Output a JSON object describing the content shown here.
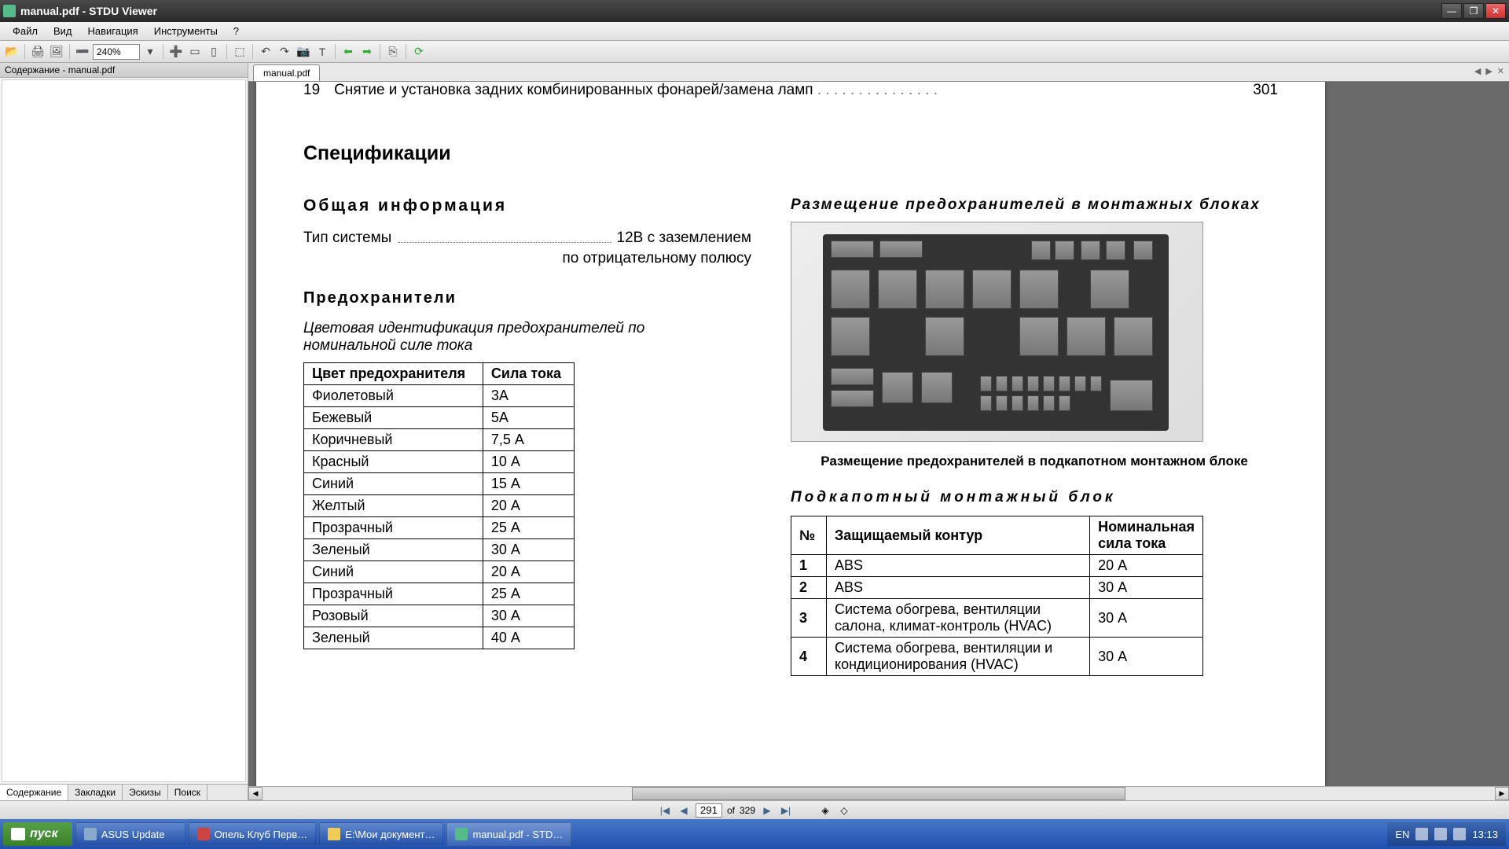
{
  "window": {
    "title": "manual.pdf - STDU Viewer"
  },
  "menu": {
    "file": "Файл",
    "view": "Вид",
    "nav": "Навигация",
    "tools": "Инструменты",
    "help": "?"
  },
  "toolbar": {
    "zoom_value": "240%"
  },
  "sidebar": {
    "header": "Содержание - manual.pdf",
    "tabs": {
      "contents": "Содержание",
      "bookmarks": "Закладки",
      "thumbnails": "Эскизы",
      "search": "Поиск"
    }
  },
  "docTab": "manual.pdf",
  "doc": {
    "toc_num": "19",
    "toc_text": "Снятие и установка задних комбинированных фонарей/замена ламп",
    "toc_page": "301",
    "h_spec": "Спецификации",
    "h_general": "Общая  информация",
    "sys_label": "Тип системы",
    "sys_value": "12В  с  заземлением",
    "sys_value2": "по отрицательному полюсу",
    "h_fuses": "Предохранители",
    "color_ident": "Цветовая идентификация предохранителей по номинальной силе тока",
    "tbl1": {
      "h1": "Цвет предохранителя",
      "h2": "Сила тока",
      "rows": [
        [
          "Фиолетовый",
          "3А"
        ],
        [
          "Бежевый",
          "5А"
        ],
        [
          "Коричневый",
          "7,5  А"
        ],
        [
          "Красный",
          "10  А"
        ],
        [
          "Синий",
          "15  А"
        ],
        [
          "Желтый",
          "20  А"
        ],
        [
          "Прозрачный",
          "25  А"
        ],
        [
          "Зеленый",
          "30  А"
        ],
        [
          "Синий",
          "20  А"
        ],
        [
          "Прозрачный",
          "25  А"
        ],
        [
          "Розовый",
          "30  А"
        ],
        [
          "Зеленый",
          "40  А"
        ]
      ]
    },
    "placement_title": "Размещение  предохранителей  в  монтажных  блоках",
    "img_caption": "Размещение предохранителей в подкапотном монтажном блоке",
    "block_title": "Подкапотный    монтажный    блок",
    "tbl2": {
      "h1": "№",
      "h2": "Защищаемый контур",
      "h3": "Номинальная сила тока",
      "rows": [
        [
          "1",
          "ABS",
          "20  А"
        ],
        [
          "2",
          "ABS",
          "30  А"
        ],
        [
          "3",
          "Система обогрева, вентиляции салона, климат-контроль (HVAC)",
          "30  А"
        ],
        [
          "4",
          "Система обогрева, вентиляции и кондиционирования (HVAC)",
          "30  А"
        ]
      ]
    }
  },
  "pager": {
    "current": "291",
    "of": "of",
    "total": "329"
  },
  "taskbar": {
    "start": "пуск",
    "items": [
      "ASUS Update",
      "Опель Клуб Перв…",
      "E:\\Мои документ…",
      "manual.pdf - STD…"
    ],
    "lang": "EN",
    "time": "13:13"
  }
}
